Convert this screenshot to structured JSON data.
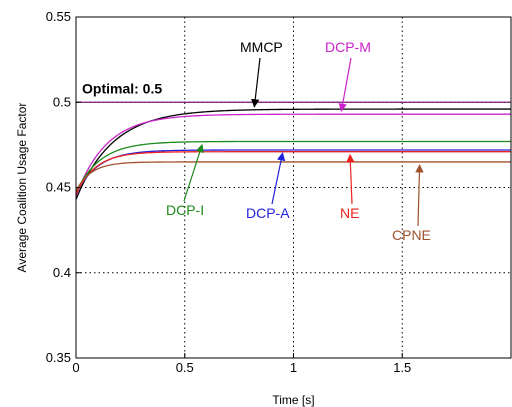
{
  "chart_data": {
    "type": "line",
    "title": "",
    "xlabel": "Time [s]",
    "ylabel": "Average Coalition Usage Factor",
    "xlim": [
      0,
      2
    ],
    "ylim": [
      0.35,
      0.55
    ],
    "x_ticks": [
      "0",
      "0.5",
      "1",
      "1.5"
    ],
    "y_ticks": [
      "0.35",
      "0.4",
      "0.45",
      "0.5",
      "0.55"
    ],
    "grid": true,
    "reference_line": {
      "label": "Optimal: 0.5",
      "value": 0.5,
      "color": "#7a1a7a"
    },
    "series": [
      {
        "name": "MMCP",
        "color": "#000000",
        "start": 0.443,
        "final": 0.496,
        "tau": 0.17
      },
      {
        "name": "DCP-M",
        "color": "#cc22cc",
        "start": 0.445,
        "final": 0.493,
        "tau": 0.14
      },
      {
        "name": "DCP-I",
        "color": "#1a8a1a",
        "start": 0.447,
        "final": 0.477,
        "tau": 0.11
      },
      {
        "name": "DCP-A",
        "color": "#2222dd",
        "start": 0.446,
        "final": 0.472,
        "tau": 0.1
      },
      {
        "name": "NE",
        "color": "#ee2020",
        "start": 0.446,
        "final": 0.471,
        "tau": 0.09
      },
      {
        "name": "CPNE",
        "color": "#a0522d",
        "start": 0.448,
        "final": 0.465,
        "tau": 0.07
      }
    ],
    "annotations": [
      {
        "label": "MMCP",
        "color": "#000000",
        "points_to_x": 0.82
      },
      {
        "label": "DCP-M",
        "color": "#cc22cc",
        "points_to_x": 1.22
      },
      {
        "label": "DCP-I",
        "color": "#1a8a1a",
        "points_to_x": 0.58
      },
      {
        "label": "DCP-A",
        "color": "#2222dd",
        "points_to_x": 0.95
      },
      {
        "label": "NE",
        "color": "#ee2020",
        "points_to_x": 1.26
      },
      {
        "label": "CPNE",
        "color": "#a0522d",
        "points_to_x": 1.58
      }
    ]
  }
}
